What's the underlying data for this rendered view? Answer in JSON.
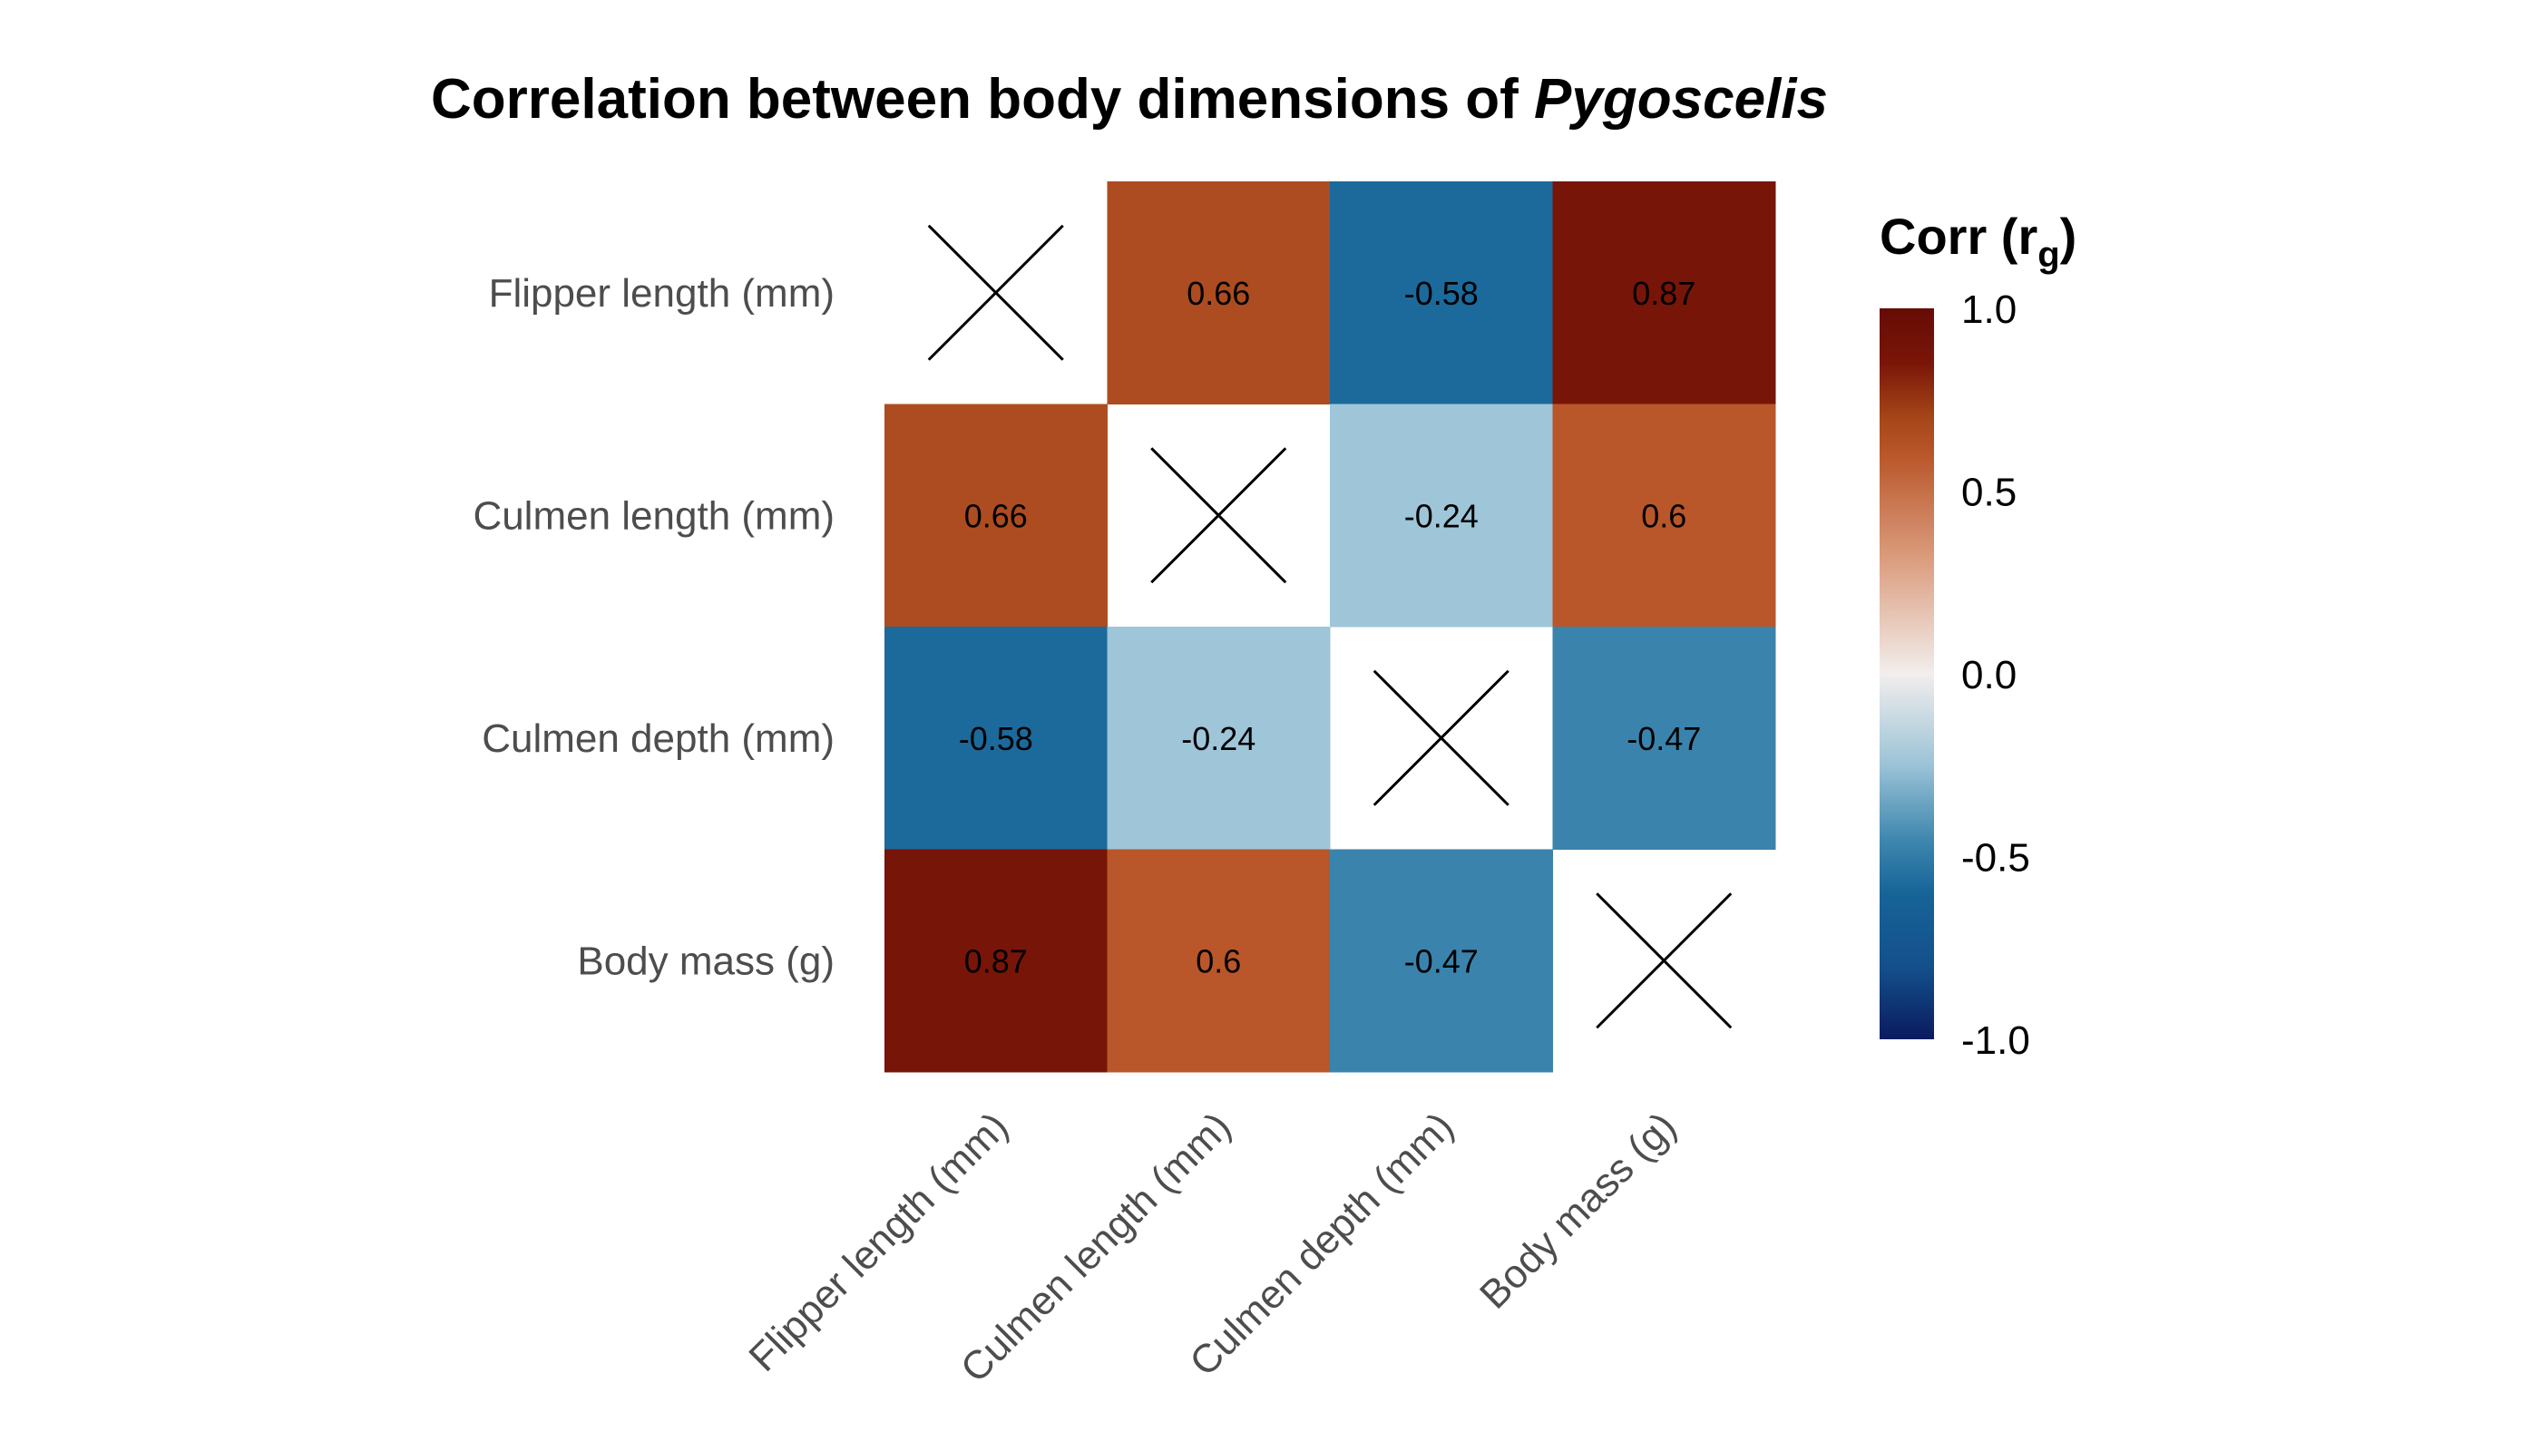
{
  "chart_data": {
    "type": "heatmap",
    "title_main": "Correlation between body dimensions of ",
    "title_italic": "Pygoscelis",
    "variables": [
      "Flipper length (mm)",
      "Culmen length (mm)",
      "Culmen depth (mm)",
      "Body mass (g)"
    ],
    "matrix": [
      [
        null,
        0.66,
        -0.58,
        0.87
      ],
      [
        0.66,
        null,
        -0.24,
        0.6
      ],
      [
        -0.58,
        -0.24,
        null,
        -0.47
      ],
      [
        0.87,
        0.6,
        -0.47,
        null
      ]
    ],
    "diagonal_marker": "cross",
    "legend": {
      "title_main": "Corr (r",
      "title_sub": "g",
      "title_end": ")",
      "ticks": [
        "1.0",
        "0.5",
        "0.0",
        "-0.5",
        "-1.0"
      ],
      "tick_values": [
        1.0,
        0.5,
        0.0,
        -0.5,
        -1.0
      ],
      "range": [
        -1.0,
        1.0
      ]
    },
    "colors": {
      "low": "#0a1b5e",
      "mid": "#f2eeed",
      "high": "#660b05"
    }
  }
}
